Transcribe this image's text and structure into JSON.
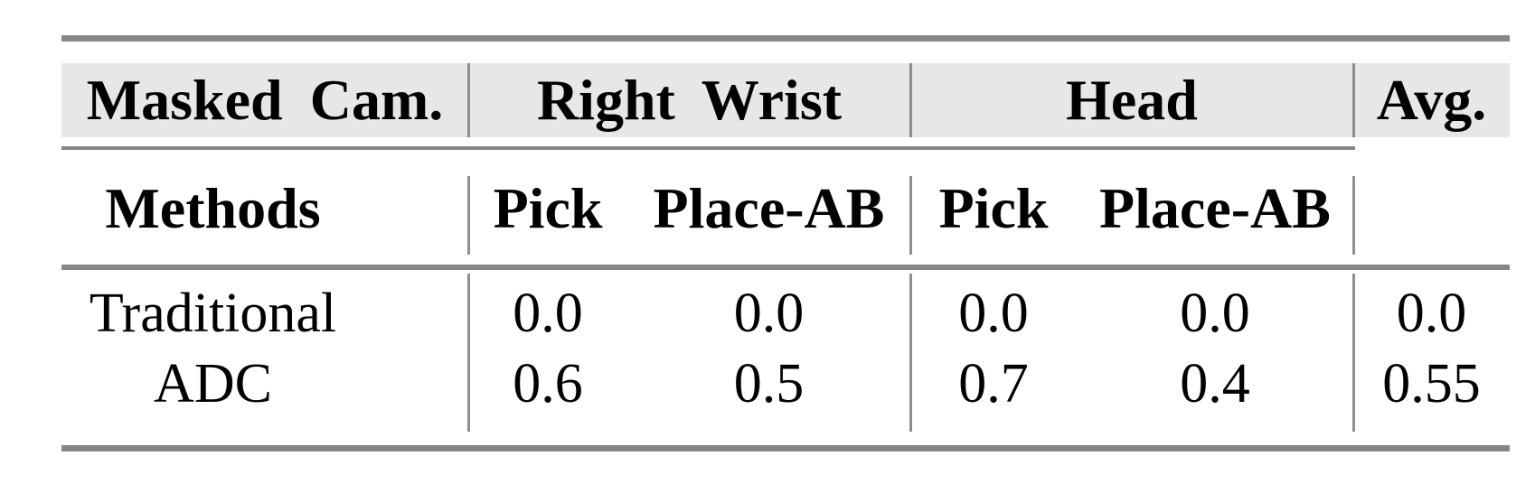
{
  "table": {
    "header_top": {
      "masked_cam": "Masked Cam.",
      "right_wrist": "Right Wrist",
      "head": "Head",
      "avg": "Avg."
    },
    "header_sub": {
      "methods": "Methods",
      "rw_pick": "Pick",
      "rw_place_ab": "Place-AB",
      "head_pick": "Pick",
      "head_place_ab": "Place-AB"
    },
    "rows": [
      {
        "method": "Traditional",
        "rw_pick": "0.0",
        "rw_place_ab": "0.0",
        "head_pick": "0.0",
        "head_place_ab": "0.0",
        "avg": "0.0"
      },
      {
        "method": "ADC",
        "rw_pick": "0.6",
        "rw_place_ab": "0.5",
        "head_pick": "0.7",
        "head_place_ab": "0.4",
        "avg": "0.55"
      }
    ]
  },
  "colors": {
    "rule_gray": "#868686",
    "separator_gray": "#8e8e8e",
    "header_band_background": "#e7e7e7",
    "text": "#000000",
    "page_background": "#ffffff"
  }
}
